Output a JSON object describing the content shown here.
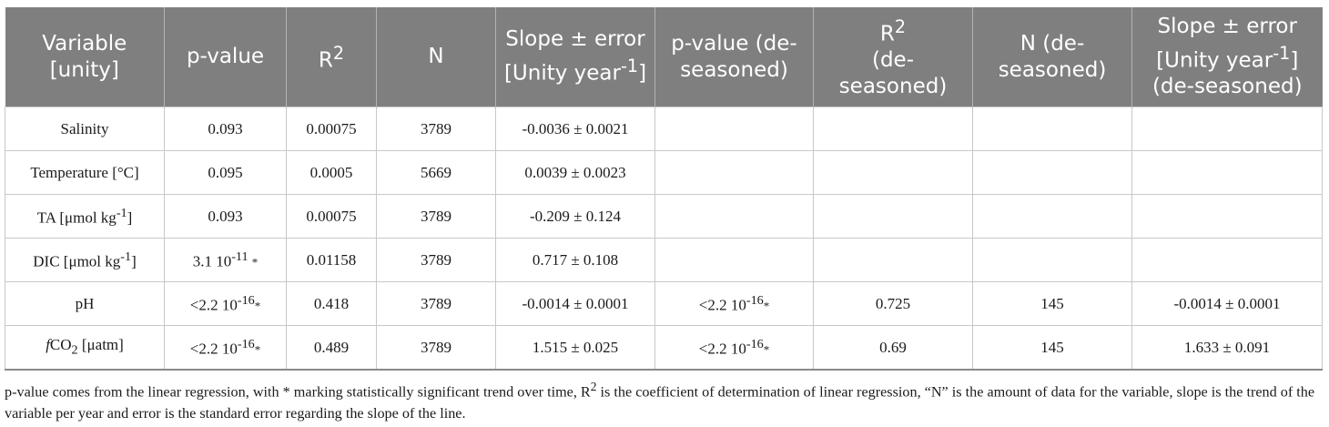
{
  "table": {
    "headers": {
      "variable": "Variable [unity]",
      "pvalue": "p-value",
      "r2": "R",
      "r2_sup": "2",
      "n": "N",
      "slope_a": "Slope ± error [Unity year",
      "slope_sup": "-1",
      "slope_b": "]",
      "pvalue_des": "p-value (de-seasoned)",
      "r2_des_sup": "2",
      "r2_des_a": "R",
      "r2_des_b": "(de-seasoned)",
      "n_des": "N (de-seasoned)",
      "slope_des_a": "Slope ± error [Unity year",
      "slope_des_sup": "-1",
      "slope_des_b": "] (de-seasoned)"
    },
    "rows": [
      {
        "variable": "Salinity",
        "pvalue": "0.093",
        "r2": "0.00075",
        "n": "3789",
        "slope": "-0.0036 ± 0.0021"
      },
      {
        "variable": "Temperature [°C]",
        "pvalue": "0.095",
        "r2": "0.0005",
        "n": "5669",
        "slope": "0.0039 ± 0.0023"
      },
      {
        "variable_a": "TA [μmol kg",
        "variable_sup": "-1",
        "variable_b": "]",
        "pvalue": "0.093",
        "r2": "0.00075",
        "n": "3789",
        "slope": "-0.209 ± 0.124"
      },
      {
        "variable_a": "DIC [μmol kg",
        "variable_sup": "-1",
        "variable_b": "]",
        "pvalue_a": "3.1 10",
        "pvalue_sup": "-11",
        "pvalue_star": "*",
        "r2": "0.01158",
        "n": "3789",
        "slope": "0.717 ± 0.108"
      },
      {
        "variable": "pH",
        "pvalue_a": "<2.2 10",
        "pvalue_sup": "-16",
        "pvalue_star": "*",
        "r2": "0.418",
        "n": "3789",
        "slope": "-0.0014 ± 0.0001",
        "pvalue_des_a": "<2.2 10",
        "pvalue_des_sup": "-16",
        "pvalue_des_star": "*",
        "r2_des": "0.725",
        "n_des": "145",
        "slope_des": "-0.0014 ± 0.0001"
      },
      {
        "variable_italic": "f",
        "variable_a": "CO",
        "variable_sub": "2",
        "variable_b": " [μatm]",
        "pvalue_a": "<2.2 10",
        "pvalue_sup": "-16",
        "pvalue_star": "*",
        "r2": "0.489",
        "n": "3789",
        "slope": "1.515 ± 0.025",
        "pvalue_des_a": "<2.2 10",
        "pvalue_des_sup": "-16",
        "pvalue_des_star": "*",
        "r2_des": "0.69",
        "n_des": "145",
        "slope_des": "1.633 ± 0.091"
      }
    ]
  },
  "footnote": {
    "part1": "p-value comes from the linear regression, with * marking statistically significant trend over time, R",
    "sup": "2",
    "part2": " is the coefficient of determination of linear regression, “N” is the amount of data for the variable, slope is the trend of the variable per year and error is the standard error regarding the slope of the line."
  }
}
